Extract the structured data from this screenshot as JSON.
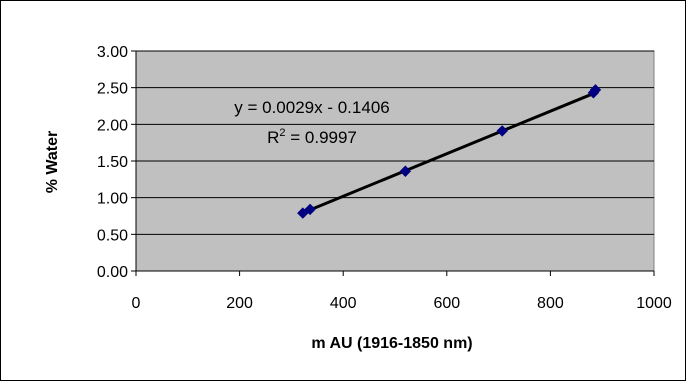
{
  "chart_data": {
    "type": "scatter",
    "title": "",
    "xlabel": "m AU (1916-1850 nm)",
    "ylabel": "% Water",
    "xlim": [
      0,
      1000
    ],
    "ylim": [
      0,
      3
    ],
    "x_ticks": [
      "0",
      "200",
      "400",
      "600",
      "800",
      "1000"
    ],
    "y_ticks": [
      "0.00",
      "0.50",
      "1.00",
      "1.50",
      "2.00",
      "2.50",
      "3.00"
    ],
    "grid": "horizontal",
    "plot_background": "#c0c0c0",
    "series": [
      {
        "marker": "diamond",
        "color": "#000080",
        "points": [
          {
            "x": 322,
            "y": 0.79
          },
          {
            "x": 336,
            "y": 0.84
          },
          {
            "x": 520,
            "y": 1.36
          },
          {
            "x": 707,
            "y": 1.91
          },
          {
            "x": 883,
            "y": 2.43
          },
          {
            "x": 887,
            "y": 2.47
          }
        ]
      }
    ],
    "trendline": {
      "slope": 0.0029,
      "intercept": -0.1406,
      "x_range": [
        322,
        887
      ],
      "color": "#000000"
    },
    "annotations": {
      "equation": "y = 0.0029x - 0.1406",
      "r2_prefix": "R",
      "r2_sup": "2",
      "r2_suffix": " = 0.9997"
    }
  }
}
